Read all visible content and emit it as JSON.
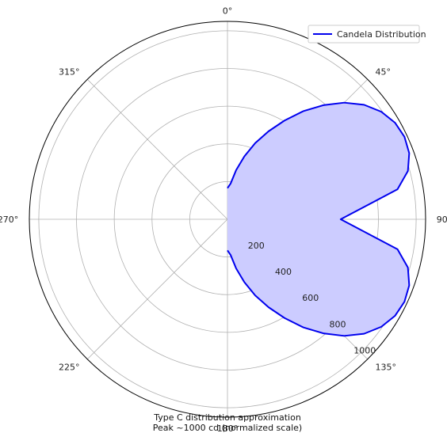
{
  "chart_data": {
    "type": "polar-area",
    "theta_zero": "top",
    "theta_direction": "clockwise",
    "angle_ticks": [
      {
        "deg": 0,
        "label": "0°"
      },
      {
        "deg": 45,
        "label": "45°"
      },
      {
        "deg": 90,
        "label": "90°"
      },
      {
        "deg": 135,
        "label": "135°"
      },
      {
        "deg": 180,
        "label": "180°"
      },
      {
        "deg": 225,
        "label": "225°"
      },
      {
        "deg": 270,
        "label": "270°"
      },
      {
        "deg": 315,
        "label": "315°"
      }
    ],
    "radial_ticks": [
      {
        "value": 200,
        "label": "200"
      },
      {
        "value": 400,
        "label": "400"
      },
      {
        "value": 600,
        "label": "600"
      },
      {
        "value": 800,
        "label": "800"
      },
      {
        "value": 1000,
        "label": "1000"
      }
    ],
    "rlim": [
      0,
      1050
    ],
    "grid": true,
    "legend_position": "top-right",
    "series": [
      {
        "name": "Candela Distribution",
        "color": "#0000ee",
        "fill": "#ccccff",
        "theta": [
          0,
          5,
          10,
          15,
          20,
          25,
          30,
          35,
          40,
          45,
          50,
          55,
          60,
          65,
          70,
          75,
          80,
          90,
          100,
          105,
          110,
          115,
          120,
          125,
          130,
          135,
          140,
          145,
          150,
          155,
          160,
          165,
          170,
          175,
          180
        ],
        "r": [
          165,
          190,
          265,
          345,
          430,
          515,
          605,
          700,
          790,
          875,
          945,
          995,
          1025,
          1035,
          1025,
          990,
          915,
          600,
          915,
          990,
          1025,
          1035,
          1025,
          995,
          945,
          875,
          790,
          700,
          605,
          515,
          430,
          345,
          265,
          190,
          165
        ]
      }
    ],
    "caption_lines": [
      "Type C distribution approximation",
      "Peak ~1000 cd (normalized scale)"
    ]
  }
}
